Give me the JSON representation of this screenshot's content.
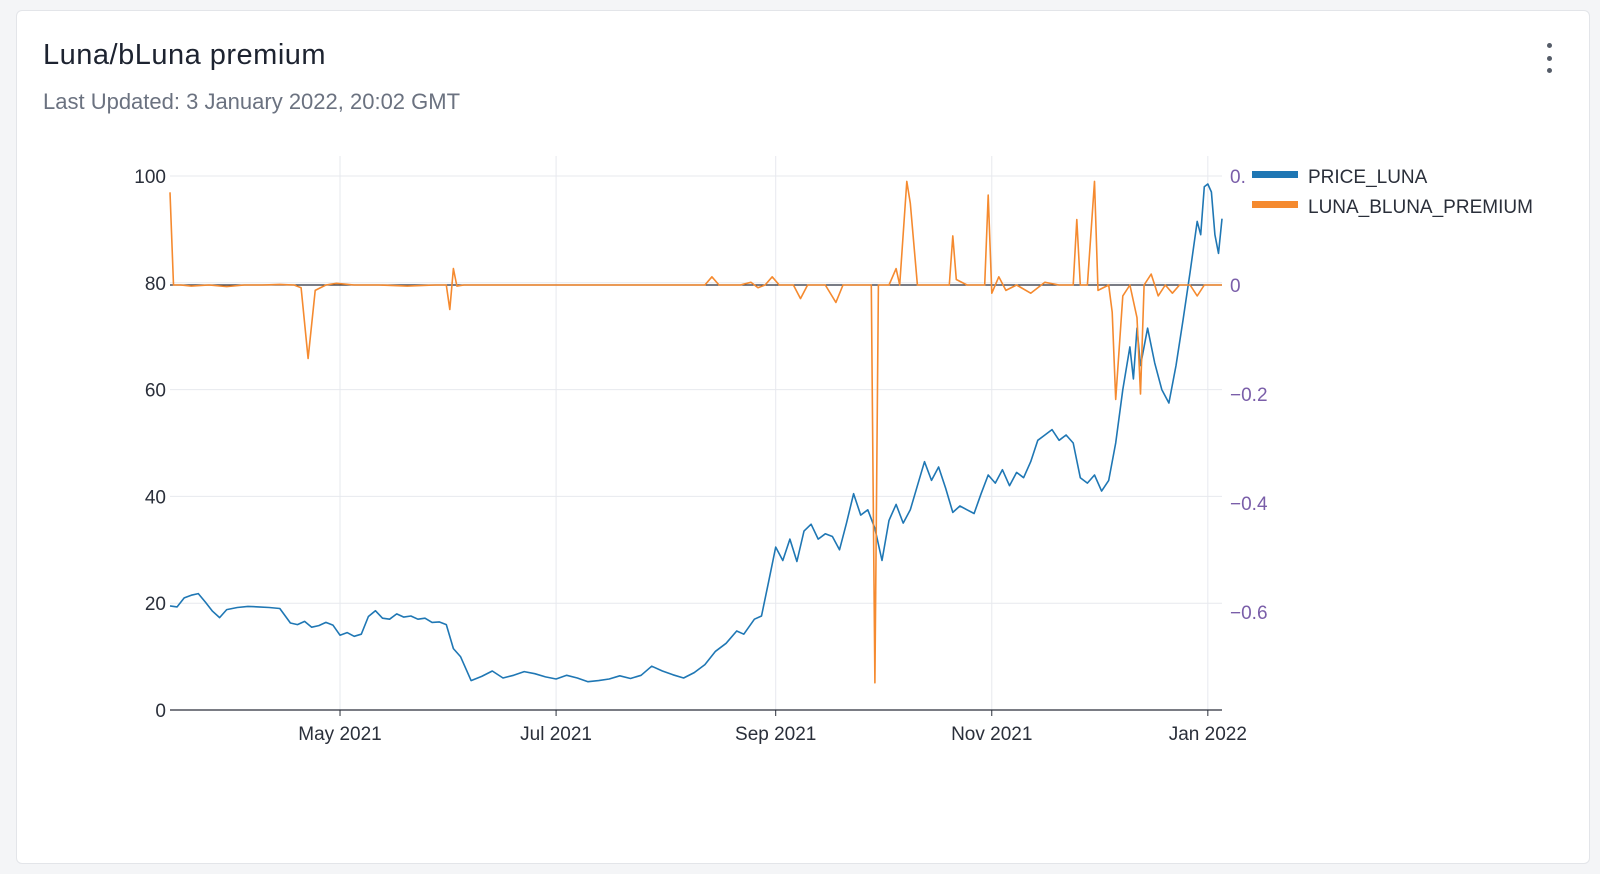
{
  "header": {
    "title": "Luna/bLuna premium",
    "last_updated": "Last Updated: 3 January 2022, 20:02 GMT"
  },
  "menu": {
    "icon": "more-vertical-icon"
  },
  "colors": {
    "price_luna": "#1f77b4",
    "premium": "#f58a2f",
    "right_axis_text": "#7a5ea9",
    "axis_text": "#2a2f3a",
    "grid": "#e7e9ee"
  },
  "chart_data": {
    "type": "line",
    "x_range": [
      "2021-03-14",
      "2022-01-05"
    ],
    "x_ticks": [
      {
        "date": "2021-05-01",
        "label": "May 2021"
      },
      {
        "date": "2021-07-01",
        "label": "Jul 2021"
      },
      {
        "date": "2021-09-01",
        "label": "Sep 2021"
      },
      {
        "date": "2021-11-01",
        "label": "Nov 2021"
      },
      {
        "date": "2022-01-01",
        "label": "Jan 2022"
      }
    ],
    "y_left": {
      "range": [
        0,
        100
      ],
      "ticks": [
        {
          "value": 0,
          "label": "0"
        },
        {
          "value": 20,
          "label": "20"
        },
        {
          "value": 40,
          "label": "40"
        },
        {
          "value": 60,
          "label": "60"
        },
        {
          "value": 80,
          "label": "80"
        },
        {
          "value": 100,
          "label": "100"
        }
      ]
    },
    "y_right": {
      "range": [
        -0.78,
        0.2
      ],
      "ticks": [
        {
          "value": 0.2,
          "label": "0."
        },
        {
          "value": 0,
          "label": "0"
        },
        {
          "value": -0.2,
          "label": "−0.2"
        },
        {
          "value": -0.4,
          "label": "−0.4"
        },
        {
          "value": -0.6,
          "label": "−0.6"
        }
      ]
    },
    "legend": {
      "position": "top-right",
      "items": [
        {
          "name": "PRICE_LUNA"
        },
        {
          "name": "LUNA_BLUNA_PREMIUM"
        }
      ]
    },
    "series": [
      {
        "name": "PRICE_LUNA",
        "axis": "left",
        "points": [
          [
            "2021-03-14",
            19.5
          ],
          [
            "2021-03-16",
            19.3
          ],
          [
            "2021-03-18",
            21.0
          ],
          [
            "2021-03-20",
            21.5
          ],
          [
            "2021-03-22",
            21.8
          ],
          [
            "2021-03-24",
            20.2
          ],
          [
            "2021-03-26",
            18.5
          ],
          [
            "2021-03-28",
            17.3
          ],
          [
            "2021-03-30",
            18.8
          ],
          [
            "2021-04-02",
            19.2
          ],
          [
            "2021-04-05",
            19.4
          ],
          [
            "2021-04-08",
            19.3
          ],
          [
            "2021-04-11",
            19.2
          ],
          [
            "2021-04-14",
            19.0
          ],
          [
            "2021-04-17",
            16.3
          ],
          [
            "2021-04-19",
            16.0
          ],
          [
            "2021-04-21",
            16.6
          ],
          [
            "2021-04-23",
            15.5
          ],
          [
            "2021-04-25",
            15.8
          ],
          [
            "2021-04-27",
            16.4
          ],
          [
            "2021-04-29",
            15.9
          ],
          [
            "2021-05-01",
            14.0
          ],
          [
            "2021-05-03",
            14.5
          ],
          [
            "2021-05-05",
            13.8
          ],
          [
            "2021-05-07",
            14.2
          ],
          [
            "2021-05-09",
            17.5
          ],
          [
            "2021-05-11",
            18.6
          ],
          [
            "2021-05-13",
            17.2
          ],
          [
            "2021-05-15",
            17.0
          ],
          [
            "2021-05-17",
            18.0
          ],
          [
            "2021-05-19",
            17.4
          ],
          [
            "2021-05-21",
            17.6
          ],
          [
            "2021-05-23",
            17.0
          ],
          [
            "2021-05-25",
            17.2
          ],
          [
            "2021-05-27",
            16.4
          ],
          [
            "2021-05-29",
            16.5
          ],
          [
            "2021-05-31",
            16.0
          ],
          [
            "2021-06-02",
            11.5
          ],
          [
            "2021-06-04",
            10.0
          ],
          [
            "2021-06-07",
            5.5
          ],
          [
            "2021-06-10",
            6.3
          ],
          [
            "2021-06-13",
            7.3
          ],
          [
            "2021-06-16",
            6.0
          ],
          [
            "2021-06-19",
            6.5
          ],
          [
            "2021-06-22",
            7.2
          ],
          [
            "2021-06-25",
            6.8
          ],
          [
            "2021-06-28",
            6.2
          ],
          [
            "2021-07-01",
            5.8
          ],
          [
            "2021-07-04",
            6.5
          ],
          [
            "2021-07-07",
            6.0
          ],
          [
            "2021-07-10",
            5.3
          ],
          [
            "2021-07-13",
            5.5
          ],
          [
            "2021-07-16",
            5.8
          ],
          [
            "2021-07-19",
            6.4
          ],
          [
            "2021-07-22",
            5.9
          ],
          [
            "2021-07-25",
            6.5
          ],
          [
            "2021-07-28",
            8.2
          ],
          [
            "2021-07-31",
            7.3
          ],
          [
            "2021-08-03",
            6.6
          ],
          [
            "2021-08-06",
            6.0
          ],
          [
            "2021-08-09",
            7.0
          ],
          [
            "2021-08-12",
            8.5
          ],
          [
            "2021-08-15",
            11.0
          ],
          [
            "2021-08-18",
            12.5
          ],
          [
            "2021-08-21",
            14.8
          ],
          [
            "2021-08-23",
            14.2
          ],
          [
            "2021-08-26",
            17.0
          ],
          [
            "2021-08-28",
            17.6
          ],
          [
            "2021-08-30",
            24.0
          ],
          [
            "2021-09-01",
            30.5
          ],
          [
            "2021-09-03",
            28.0
          ],
          [
            "2021-09-05",
            32.0
          ],
          [
            "2021-09-07",
            27.8
          ],
          [
            "2021-09-09",
            33.5
          ],
          [
            "2021-09-11",
            34.8
          ],
          [
            "2021-09-13",
            32.0
          ],
          [
            "2021-09-15",
            33.0
          ],
          [
            "2021-09-17",
            32.5
          ],
          [
            "2021-09-19",
            30.0
          ],
          [
            "2021-09-21",
            35.0
          ],
          [
            "2021-09-23",
            40.5
          ],
          [
            "2021-09-25",
            36.5
          ],
          [
            "2021-09-27",
            37.5
          ],
          [
            "2021-09-29",
            34.0
          ],
          [
            "2021-10-01",
            28.0
          ],
          [
            "2021-10-03",
            35.5
          ],
          [
            "2021-10-05",
            38.5
          ],
          [
            "2021-10-07",
            35.0
          ],
          [
            "2021-10-09",
            37.5
          ],
          [
            "2021-10-11",
            42.0
          ],
          [
            "2021-10-13",
            46.5
          ],
          [
            "2021-10-15",
            43.0
          ],
          [
            "2021-10-17",
            45.5
          ],
          [
            "2021-10-19",
            41.5
          ],
          [
            "2021-10-21",
            37.0
          ],
          [
            "2021-10-23",
            38.2
          ],
          [
            "2021-10-25",
            37.5
          ],
          [
            "2021-10-27",
            36.8
          ],
          [
            "2021-10-29",
            40.5
          ],
          [
            "2021-10-31",
            44.0
          ],
          [
            "2021-11-02",
            42.5
          ],
          [
            "2021-11-04",
            45.0
          ],
          [
            "2021-11-06",
            42.0
          ],
          [
            "2021-11-08",
            44.5
          ],
          [
            "2021-11-10",
            43.5
          ],
          [
            "2021-11-12",
            46.5
          ],
          [
            "2021-11-14",
            50.5
          ],
          [
            "2021-11-16",
            51.5
          ],
          [
            "2021-11-18",
            52.5
          ],
          [
            "2021-11-20",
            50.5
          ],
          [
            "2021-11-22",
            51.5
          ],
          [
            "2021-11-24",
            50.0
          ],
          [
            "2021-11-26",
            43.5
          ],
          [
            "2021-11-28",
            42.5
          ],
          [
            "2021-11-30",
            44.0
          ],
          [
            "2021-12-02",
            41.0
          ],
          [
            "2021-12-04",
            43.0
          ],
          [
            "2021-12-06",
            50.0
          ],
          [
            "2021-12-08",
            60.0
          ],
          [
            "2021-12-10",
            68.0
          ],
          [
            "2021-12-11",
            62.0
          ],
          [
            "2021-12-12",
            71.5
          ],
          [
            "2021-12-13",
            64.5
          ],
          [
            "2021-12-15",
            71.5
          ],
          [
            "2021-12-17",
            65.0
          ],
          [
            "2021-12-19",
            60.0
          ],
          [
            "2021-12-21",
            57.5
          ],
          [
            "2021-12-23",
            64.5
          ],
          [
            "2021-12-25",
            73.0
          ],
          [
            "2021-12-27",
            82.0
          ],
          [
            "2021-12-29",
            91.5
          ],
          [
            "2021-12-30",
            89.0
          ],
          [
            "2021-12-31",
            98.0
          ],
          [
            "2022-01-01",
            98.5
          ],
          [
            "2022-01-02",
            97.0
          ],
          [
            "2022-01-03",
            89.0
          ],
          [
            "2022-01-04",
            85.5
          ],
          [
            "2022-01-05",
            92.0
          ]
        ]
      },
      {
        "name": "LUNA_BLUNA_PREMIUM",
        "axis": "right",
        "points": [
          [
            "2021-03-14",
            0.17
          ],
          [
            "2021-03-15",
            0.0
          ],
          [
            "2021-03-17",
            0.0
          ],
          [
            "2021-03-20",
            -0.002
          ],
          [
            "2021-03-25",
            0.0
          ],
          [
            "2021-03-30",
            -0.003
          ],
          [
            "2021-04-04",
            0.0
          ],
          [
            "2021-04-09",
            0.0
          ],
          [
            "2021-04-14",
            0.001
          ],
          [
            "2021-04-18",
            0.0
          ],
          [
            "2021-04-20",
            -0.005
          ],
          [
            "2021-04-22",
            -0.135
          ],
          [
            "2021-04-24",
            -0.01
          ],
          [
            "2021-04-27",
            0.0
          ],
          [
            "2021-04-30",
            0.003
          ],
          [
            "2021-05-05",
            0.0
          ],
          [
            "2021-05-12",
            0.0
          ],
          [
            "2021-05-20",
            -0.002
          ],
          [
            "2021-05-28",
            0.0
          ],
          [
            "2021-05-31",
            0.0
          ],
          [
            "2021-06-01",
            -0.045
          ],
          [
            "2021-06-02",
            0.03
          ],
          [
            "2021-06-03",
            -0.002
          ],
          [
            "2021-06-05",
            0.0
          ],
          [
            "2021-06-15",
            0.0
          ],
          [
            "2021-07-01",
            0.0
          ],
          [
            "2021-07-20",
            0.0
          ],
          [
            "2021-08-05",
            0.0
          ],
          [
            "2021-08-12",
            0.0
          ],
          [
            "2021-08-14",
            0.015
          ],
          [
            "2021-08-16",
            0.0
          ],
          [
            "2021-08-22",
            0.0
          ],
          [
            "2021-08-25",
            0.005
          ],
          [
            "2021-08-27",
            -0.005
          ],
          [
            "2021-08-29",
            0.0
          ],
          [
            "2021-08-31",
            0.015
          ],
          [
            "2021-09-02",
            0.0
          ],
          [
            "2021-09-06",
            0.0
          ],
          [
            "2021-09-08",
            -0.025
          ],
          [
            "2021-09-10",
            0.0
          ],
          [
            "2021-09-15",
            0.0
          ],
          [
            "2021-09-18",
            -0.032
          ],
          [
            "2021-09-20",
            0.0
          ],
          [
            "2021-09-25",
            0.0
          ],
          [
            "2021-09-28",
            0.0
          ],
          [
            "2021-09-29",
            -0.73
          ],
          [
            "2021-09-30",
            0.0
          ],
          [
            "2021-10-03",
            0.0
          ],
          [
            "2021-10-05",
            0.03
          ],
          [
            "2021-10-06",
            0.0
          ],
          [
            "2021-10-08",
            0.19
          ],
          [
            "2021-10-09",
            0.15
          ],
          [
            "2021-10-11",
            0.0
          ],
          [
            "2021-10-18",
            0.0
          ],
          [
            "2021-10-20",
            0.0
          ],
          [
            "2021-10-21",
            0.09
          ],
          [
            "2021-10-22",
            0.01
          ],
          [
            "2021-10-25",
            0.0
          ],
          [
            "2021-10-28",
            0.0
          ],
          [
            "2021-10-30",
            0.0
          ],
          [
            "2021-10-31",
            0.165
          ],
          [
            "2021-11-01",
            -0.015
          ],
          [
            "2021-11-03",
            0.015
          ],
          [
            "2021-11-05",
            -0.01
          ],
          [
            "2021-11-08",
            0.0
          ],
          [
            "2021-11-12",
            -0.015
          ],
          [
            "2021-11-16",
            0.005
          ],
          [
            "2021-11-20",
            0.0
          ],
          [
            "2021-11-24",
            0.0
          ],
          [
            "2021-11-25",
            0.12
          ],
          [
            "2021-11-26",
            0.0
          ],
          [
            "2021-11-28",
            0.0
          ],
          [
            "2021-11-30",
            0.19
          ],
          [
            "2021-12-01",
            -0.01
          ],
          [
            "2021-12-04",
            0.0
          ],
          [
            "2021-12-05",
            -0.05
          ],
          [
            "2021-12-06",
            -0.21
          ],
          [
            "2021-12-08",
            -0.02
          ],
          [
            "2021-12-10",
            0.0
          ],
          [
            "2021-12-12",
            -0.06
          ],
          [
            "2021-12-13",
            -0.2
          ],
          [
            "2021-12-14",
            0.0
          ],
          [
            "2021-12-16",
            0.02
          ],
          [
            "2021-12-18",
            -0.02
          ],
          [
            "2021-12-20",
            0.0
          ],
          [
            "2021-12-22",
            -0.015
          ],
          [
            "2021-12-24",
            0.0
          ],
          [
            "2021-12-27",
            0.0
          ],
          [
            "2021-12-29",
            -0.02
          ],
          [
            "2021-12-31",
            0.0
          ],
          [
            "2022-01-02",
            0.0
          ],
          [
            "2022-01-05",
            0.0
          ]
        ]
      }
    ]
  }
}
